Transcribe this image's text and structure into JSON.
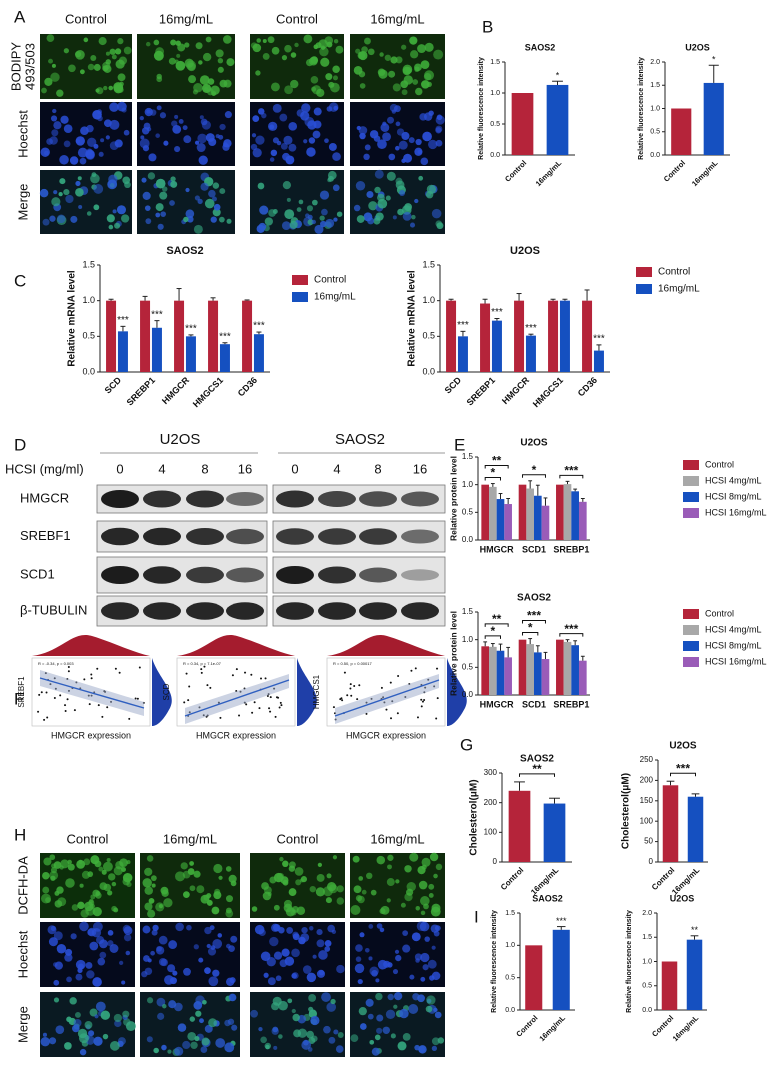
{
  "panels": {
    "letters": [
      "A",
      "B",
      "C",
      "D",
      "E",
      "F",
      "G",
      "H",
      "I"
    ],
    "A": {
      "columns": [
        "Control",
        "16mg/mL",
        "Control",
        "16mg/mL"
      ],
      "rows": [
        [
          "BODIPY",
          "493/503"
        ],
        [
          "Hoechst"
        ],
        [
          "Merge"
        ]
      ]
    },
    "D": {
      "cell_lines": [
        "U2OS",
        "SAOS2"
      ],
      "dose_label": "HCSI (mg/ml)",
      "lanes": [
        "0",
        "4",
        "8",
        "16"
      ],
      "proteins": [
        "HMGCR",
        "SREBF1",
        "SCD1",
        "β-TUBULIN"
      ]
    },
    "F": {
      "plots": [
        {
          "ylabel": "SREBF1",
          "xlabel": "HMGCR expression",
          "stat": "R = -0.34, p = 0.003"
        },
        {
          "ylabel": "SCD",
          "xlabel": "HMGCR expression",
          "stat": "R = 0.34, p = 7.1e-07"
        },
        {
          "ylabel": "HMGCS1",
          "xlabel": "HMGCR expression",
          "stat": "R = 0.50, p = 0.00017"
        }
      ]
    },
    "H": {
      "columns": [
        "Control",
        "16mg/mL",
        "Control",
        "16mg/mL"
      ],
      "rows": [
        [
          "DCFH-DA"
        ],
        [
          "Hoechst"
        ],
        [
          "Merge"
        ]
      ]
    }
  },
  "chart_data": [
    {
      "type": "bar",
      "title": "SAOS2",
      "ylabel": "Relative fluorescence intensity",
      "categories": [
        "Control",
        "16mg/mL"
      ],
      "values": [
        1.0,
        1.13
      ],
      "errors": [
        0,
        0.06
      ],
      "colors": [
        "#b5243a",
        "#1550c0"
      ],
      "ylim": [
        0,
        1.5
      ],
      "yticks": [
        {
          "value": 0,
          "label": "0.0"
        },
        {
          "value": 0.5,
          "label": "0.5"
        },
        {
          "value": 1,
          "label": "1.0"
        },
        {
          "value": 1.5,
          "label": "1.5"
        }
      ],
      "annotation": "*",
      "bracket": false
    },
    {
      "type": "bar",
      "title": "U2OS",
      "ylabel": "Relative fluorescence intensity",
      "categories": [
        "Control",
        "16mg/mL"
      ],
      "values": [
        1.0,
        1.55
      ],
      "errors": [
        0,
        0.38
      ],
      "colors": [
        "#b5243a",
        "#1550c0"
      ],
      "ylim": [
        0,
        2
      ],
      "yticks": [
        {
          "value": 0,
          "label": "0.0"
        },
        {
          "value": 0.5,
          "label": "0.5"
        },
        {
          "value": 1,
          "label": "1.0"
        },
        {
          "value": 1.5,
          "label": "1.5"
        },
        {
          "value": 2,
          "label": "2.0"
        }
      ],
      "annotation": "*",
      "bracket": false
    },
    {
      "type": "grouped_bar",
      "title": "SAOS2",
      "ylabel": "Relative mRNA level",
      "categories": [
        "SCD",
        "SREBP1",
        "HMGCR",
        "HMGCS1",
        "CD36"
      ],
      "series": [
        {
          "name": "Control",
          "color": "#b5243a",
          "values": [
            1,
            1,
            1,
            1,
            1
          ],
          "errors": [
            0.02,
            0.06,
            0.17,
            0.04,
            0.01
          ]
        },
        {
          "name": "16mg/mL",
          "color": "#1550c0",
          "values": [
            0.57,
            0.62,
            0.5,
            0.39,
            0.53
          ],
          "errors": [
            0.07,
            0.1,
            0.02,
            0.02,
            0.03
          ]
        }
      ],
      "ylim": [
        0,
        1.5
      ],
      "yticks": [
        {
          "value": 0,
          "label": "0.0"
        },
        {
          "value": 0.5,
          "label": "0.5"
        },
        {
          "value": 1,
          "label": "1.0"
        },
        {
          "value": 1.5,
          "label": "1.5"
        }
      ],
      "annotations": [
        "***",
        "***",
        "***",
        "***",
        "***"
      ],
      "legend": "right"
    },
    {
      "type": "grouped_bar",
      "title": "U2OS",
      "ylabel": "Relative mRNA level",
      "categories": [
        "SCD",
        "SREBP1",
        "HMGCR",
        "HMGCS1",
        "CD36"
      ],
      "series": [
        {
          "name": "Control",
          "color": "#b5243a",
          "values": [
            1,
            0.96,
            1,
            1,
            1
          ],
          "errors": [
            0.02,
            0.06,
            0.1,
            0.02,
            0.15
          ]
        },
        {
          "name": "16mg/mL",
          "color": "#1550c0",
          "values": [
            0.5,
            0.72,
            0.51,
            1,
            0.3
          ],
          "errors": [
            0.07,
            0.03,
            0.02,
            0.02,
            0.08
          ]
        }
      ],
      "ylim": [
        0,
        1.5
      ],
      "yticks": [
        {
          "value": 0,
          "label": "0.0"
        },
        {
          "value": 0.5,
          "label": "0.5"
        },
        {
          "value": 1,
          "label": "1.0"
        },
        {
          "value": 1.5,
          "label": "1.5"
        }
      ],
      "annotations": [
        "***",
        "***",
        "***",
        null,
        "***"
      ],
      "legend": "right"
    },
    {
      "type": "grouped_bar",
      "title": "U2OS",
      "ylabel": "Relative protein level",
      "categories": [
        "HMGCR",
        "SCD1",
        "SREBP1"
      ],
      "series": [
        {
          "name": "Control",
          "color": "#b5243a",
          "values": [
            1,
            1,
            1
          ],
          "errors": [
            0,
            0,
            0
          ]
        },
        {
          "name": "HCSI 4mg/mL",
          "color": "#a8a8a8",
          "values": [
            0.96,
            0.93,
            1.01
          ],
          "errors": [
            0.06,
            0.14,
            0.05
          ]
        },
        {
          "name": "HCSI 8mg/mL",
          "color": "#1550c0",
          "values": [
            0.74,
            0.8,
            0.88
          ],
          "errors": [
            0.1,
            0.19,
            0.04
          ]
        },
        {
          "name": "HCSI 16mg/mL",
          "color": "#9a5cb8",
          "values": [
            0.65,
            0.62,
            0.69
          ],
          "errors": [
            0.1,
            0.14,
            0.06
          ]
        }
      ],
      "ylim": [
        0,
        1.5
      ],
      "yticks": [
        {
          "value": 0,
          "label": "0.0"
        },
        {
          "value": 0.5,
          "label": "0.5"
        },
        {
          "value": 1,
          "label": "1.0"
        },
        {
          "value": 1.5,
          "label": "1.5"
        }
      ],
      "brackets": [
        {
          "category": 0,
          "span": [
            0,
            2
          ],
          "label": "*"
        },
        {
          "category": 0,
          "span": [
            0,
            3
          ],
          "label": "**"
        },
        {
          "category": 1,
          "span": [
            0,
            3
          ],
          "label": "*"
        },
        {
          "category": 2,
          "span": [
            0,
            3
          ],
          "label": "***"
        }
      ],
      "legend": "right"
    },
    {
      "type": "grouped_bar",
      "title": "SAOS2",
      "ylabel": "Relative protein level",
      "categories": [
        "HMGCR",
        "SCD1",
        "SREBP1"
      ],
      "series": [
        {
          "name": "Control",
          "color": "#b5243a",
          "values": [
            0.88,
            1,
            1
          ],
          "errors": [
            0.08,
            0,
            0
          ]
        },
        {
          "name": "HCSI 4mg/mL",
          "color": "#a8a8a8",
          "values": [
            0.87,
            0.92,
            0.96
          ],
          "errors": [
            0.06,
            0.1,
            0.04
          ]
        },
        {
          "name": "HCSI 8mg/mL",
          "color": "#1550c0",
          "values": [
            0.8,
            0.77,
            0.9
          ],
          "errors": [
            0.12,
            0.12,
            0.08
          ]
        },
        {
          "name": "HCSI 16mg/mL",
          "color": "#9a5cb8",
          "values": [
            0.68,
            0.65,
            0.62
          ],
          "errors": [
            0.18,
            0.12,
            0.08
          ]
        }
      ],
      "ylim": [
        0,
        1.5
      ],
      "yticks": [
        {
          "value": 0,
          "label": "0.0"
        },
        {
          "value": 0.5,
          "label": "0.5"
        },
        {
          "value": 1,
          "label": "1.0"
        },
        {
          "value": 1.5,
          "label": "1.5"
        }
      ],
      "brackets": [
        {
          "category": 0,
          "span": [
            0,
            2
          ],
          "label": "*"
        },
        {
          "category": 0,
          "span": [
            0,
            3
          ],
          "label": "**"
        },
        {
          "category": 1,
          "span": [
            0,
            2
          ],
          "label": "*"
        },
        {
          "category": 1,
          "span": [
            0,
            3
          ],
          "label": "***"
        },
        {
          "category": 2,
          "span": [
            0,
            3
          ],
          "label": "***"
        }
      ],
      "legend": "right"
    },
    {
      "type": "bar",
      "title": "SAOS2",
      "ylabel": "Cholesterol(μM)",
      "categories": [
        "Control",
        "16mg/mL"
      ],
      "values": [
        240,
        197
      ],
      "errors": [
        30,
        18
      ],
      "colors": [
        "#b5243a",
        "#1550c0"
      ],
      "ylim": [
        0,
        300
      ],
      "yticks": [
        0,
        100,
        200,
        300
      ],
      "annotation": "**",
      "bracket": true
    },
    {
      "type": "bar",
      "title": "U2OS",
      "ylabel": "Cholesterol(μM)",
      "categories": [
        "Control",
        "16mg/mL"
      ],
      "values": [
        188,
        160
      ],
      "errors": [
        10,
        7
      ],
      "colors": [
        "#b5243a",
        "#1550c0"
      ],
      "ylim": [
        0,
        250
      ],
      "yticks": [
        0,
        50,
        100,
        150,
        200,
        250
      ],
      "annotation": "***",
      "bracket": true
    },
    {
      "type": "bar",
      "title": "SAOS2",
      "ylabel": "Relative fluorescence intensity",
      "categories": [
        "Control",
        "16mg/mL"
      ],
      "values": [
        1.0,
        1.24
      ],
      "errors": [
        0,
        0.05
      ],
      "colors": [
        "#b5243a",
        "#1550c0"
      ],
      "ylim": [
        0,
        1.5
      ],
      "yticks": [
        {
          "value": 0,
          "label": "0.0"
        },
        {
          "value": 0.5,
          "label": "0.5"
        },
        {
          "value": 1,
          "label": "1.0"
        },
        {
          "value": 1.5,
          "label": "1.5"
        }
      ],
      "annotation": "***",
      "bracket": false
    },
    {
      "type": "bar",
      "title": "U2OS",
      "ylabel": "Relative fluorescence intensity",
      "categories": [
        "Control",
        "16mg/mL"
      ],
      "values": [
        1.0,
        1.45
      ],
      "errors": [
        0,
        0.08
      ],
      "colors": [
        "#b5243a",
        "#1550c0"
      ],
      "ylim": [
        0,
        2
      ],
      "yticks": [
        {
          "value": 0,
          "label": "0.0"
        },
        {
          "value": 0.5,
          "label": "0.5"
        },
        {
          "value": 1,
          "label": "1.0"
        },
        {
          "value": 1.5,
          "label": "1.5"
        },
        {
          "value": 2,
          "label": "2.0"
        }
      ],
      "annotation": "**",
      "bracket": false
    }
  ]
}
